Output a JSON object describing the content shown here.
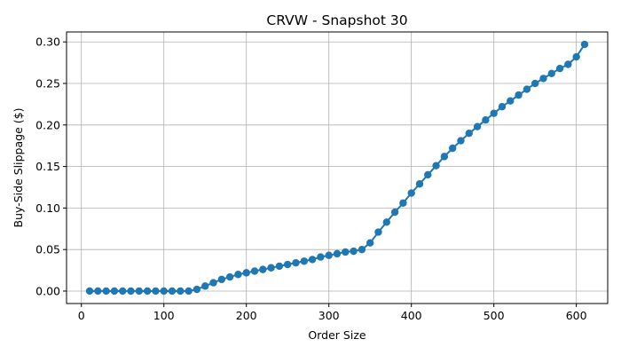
{
  "chart_data": {
    "type": "line",
    "title": "CRVW - Snapshot 30",
    "xlabel": "Order Size",
    "ylabel": "Buy-Side Slippage ($)",
    "xlim": [
      -18,
      638
    ],
    "ylim": [
      -0.015,
      0.312
    ],
    "grid": true,
    "marker": "circle",
    "color": "#1f77b4",
    "x_ticks": [
      0,
      100,
      200,
      300,
      400,
      500,
      600
    ],
    "x_tick_labels": [
      "0",
      "100",
      "200",
      "300",
      "400",
      "500",
      "600"
    ],
    "y_ticks": [
      0.0,
      0.05,
      0.1,
      0.15,
      0.2,
      0.25,
      0.3
    ],
    "y_tick_labels": [
      "0.00",
      "0.05",
      "0.10",
      "0.15",
      "0.20",
      "0.25",
      "0.30"
    ],
    "series": [
      {
        "x": [
          10,
          20,
          30,
          40,
          50,
          60,
          70,
          80,
          90,
          100,
          110,
          120,
          130,
          140,
          150,
          160,
          170,
          180,
          190,
          200,
          210,
          220,
          230,
          240,
          250,
          260,
          270,
          280,
          290,
          300,
          310,
          320,
          330,
          340,
          350,
          360,
          370,
          380,
          390,
          400,
          410,
          420,
          430,
          440,
          450,
          460,
          470,
          480,
          490,
          500,
          510,
          520,
          530,
          540,
          550,
          560,
          570,
          580,
          590,
          600,
          610
        ],
        "values": [
          0,
          0,
          0,
          0,
          0,
          0,
          0,
          0,
          0,
          0,
          0,
          0,
          0,
          0.002,
          0.006,
          0.01,
          0.014,
          0.017,
          0.02,
          0.022,
          0.024,
          0.026,
          0.028,
          0.03,
          0.032,
          0.034,
          0.036,
          0.038,
          0.041,
          0.043,
          0.045,
          0.047,
          0.048,
          0.05,
          0.058,
          0.071,
          0.083,
          0.095,
          0.106,
          0.118,
          0.129,
          0.14,
          0.151,
          0.162,
          0.172,
          0.181,
          0.19,
          0.198,
          0.206,
          0.214,
          0.222,
          0.229,
          0.236,
          0.243,
          0.25,
          0.256,
          0.262,
          0.268,
          0.273,
          0.282,
          0.297
        ]
      }
    ]
  }
}
